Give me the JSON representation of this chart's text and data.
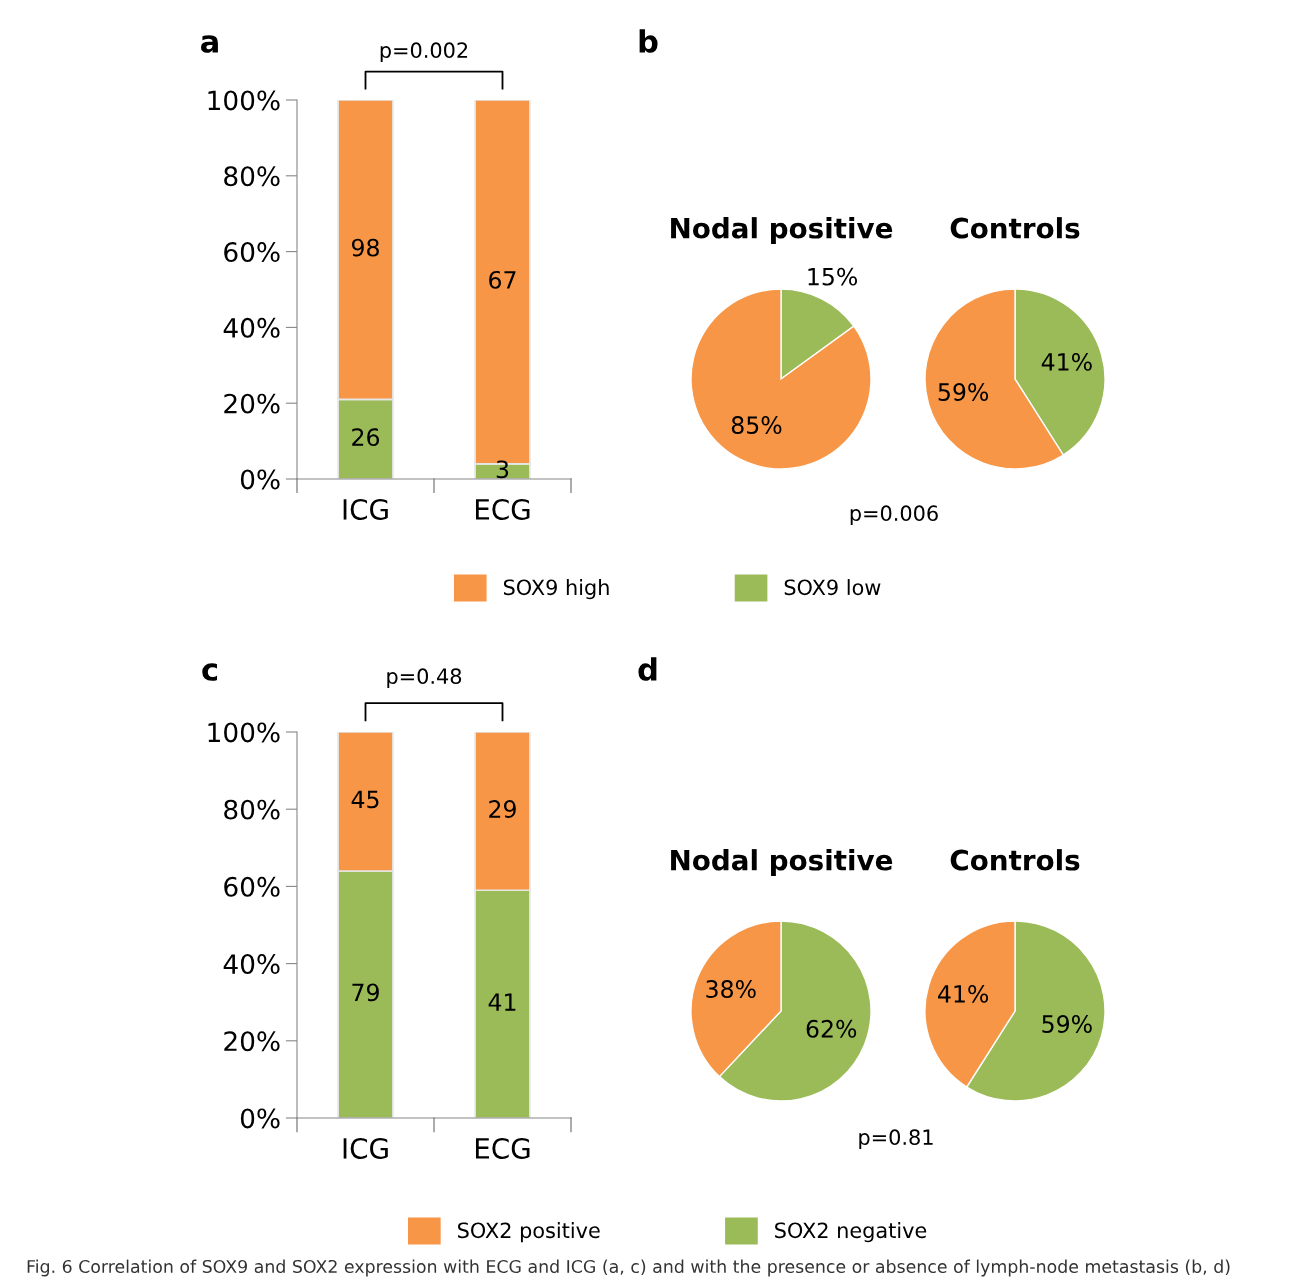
{
  "chart_data": [
    {
      "type": "bar",
      "stacked": true,
      "categories": [
        "ICG",
        "ECG"
      ],
      "legend": "bottom",
      "grid": false,
      "ylim": [
        0,
        100
      ],
      "yticks": [
        {
          "value": 0,
          "label": "0%"
        },
        {
          "value": 20,
          "label": "20%"
        },
        {
          "value": 40,
          "label": "40%"
        },
        {
          "value": 60,
          "label": "60%"
        },
        {
          "value": 80,
          "label": "80%"
        },
        {
          "value": 100,
          "label": "100%"
        }
      ],
      "series": [
        {
          "name": "SOX9 low",
          "color": "#9bbb59",
          "values": [
            21,
            4
          ]
        },
        {
          "name": "SOX9 high",
          "color": "#f79646",
          "values": [
            79,
            96
          ]
        }
      ],
      "annotations": [
        "a",
        "p=0.002",
        "26",
        "3",
        "98",
        "67"
      ]
    },
    {
      "type": "pie",
      "title": "Nodal positive",
      "categories": [
        null,
        null
      ],
      "values": [
        15,
        85
      ],
      "colors": [
        "#9bbb59",
        "#f79646"
      ],
      "value_labels": [
        "15%",
        "85%"
      ],
      "annotations": [
        "b",
        "p=0.006"
      ]
    },
    {
      "type": "pie",
      "title": "Controls",
      "categories": [
        null,
        null
      ],
      "values": [
        41,
        59
      ],
      "colors": [
        "#9bbb59",
        "#f79646"
      ],
      "value_labels": [
        "41%",
        "59%"
      ]
    },
    {
      "type": "bar",
      "stacked": true,
      "categories": [
        "ICG",
        "ECG"
      ],
      "legend": "bottom",
      "grid": false,
      "ylim": [
        0,
        100
      ],
      "yticks": [
        {
          "value": 0,
          "label": "0%"
        },
        {
          "value": 20,
          "label": "20%"
        },
        {
          "value": 40,
          "label": "40%"
        },
        {
          "value": 60,
          "label": "60%"
        },
        {
          "value": 80,
          "label": "80%"
        },
        {
          "value": 100,
          "label": "100%"
        }
      ],
      "series": [
        {
          "name": "SOX2 negative",
          "color": "#9bbb59",
          "values": [
            64,
            59
          ]
        },
        {
          "name": "SOX2 positive",
          "color": "#f79646",
          "values": [
            36,
            41
          ]
        }
      ],
      "annotations": [
        "c",
        "p=0.48",
        "79",
        "41",
        "45",
        "29"
      ]
    },
    {
      "type": "pie",
      "title": "Nodal positive",
      "categories": [
        null,
        null
      ],
      "values": [
        62,
        38
      ],
      "colors": [
        "#9bbb59",
        "#f79646"
      ],
      "value_labels": [
        "62%",
        "38%"
      ],
      "annotations": [
        "d",
        "p=0.81"
      ]
    },
    {
      "type": "pie",
      "title": "Controls",
      "categories": [
        null,
        null
      ],
      "values": [
        59,
        41
      ],
      "colors": [
        "#9bbb59",
        "#f79646"
      ],
      "value_labels": [
        "59%",
        "41%"
      ],
      "annotations": [
        "Fig. 6 Correlation of SOX9 and SOX2 expression with ECG and ICG (a, c) and with the presence or absence of lymph-node metastasis (b, d)"
      ]
    }
  ]
}
